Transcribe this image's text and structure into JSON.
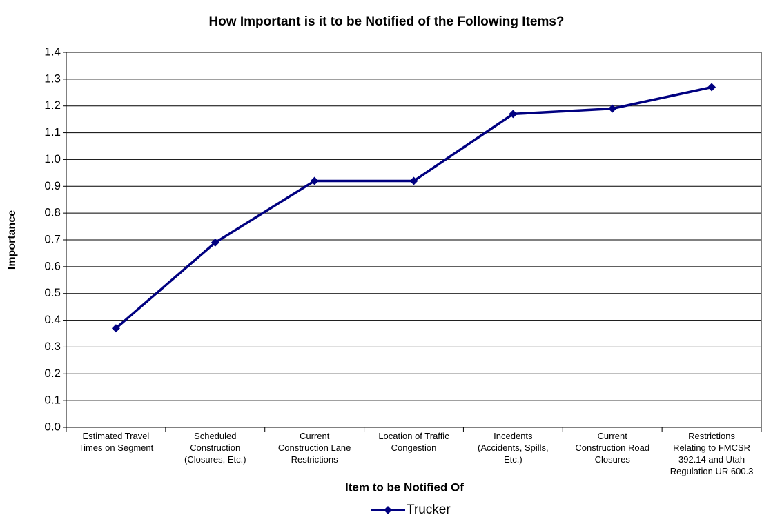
{
  "chart_data": {
    "type": "line",
    "title": "How Important is it to be Notified of the Following Items?",
    "x_label": "Item to be Notified Of",
    "y_label": "Importance",
    "categories": [
      "Estimated Travel Times on Segment",
      "Scheduled Construction (Closures, Etc.)",
      "Current Construction Lane Restrictions",
      "Location of Traffic Congestion",
      "Incedents (Accidents, Spills, Etc.)",
      "Current Construction Road Closures",
      "Restrictions Relating to FMCSR 392.14 and Utah Regulation UR 600.3"
    ],
    "series": [
      {
        "name": "Trucker",
        "color": "#000080",
        "values": [
          0.37,
          0.69,
          0.92,
          0.92,
          1.17,
          1.19,
          1.27
        ]
      }
    ],
    "ylim": [
      0,
      1.4
    ],
    "yticks": [
      {
        "value": 0,
        "label": "0.0"
      },
      0.1,
      0.2,
      0.3,
      0.4,
      0.5,
      0.6,
      0.7,
      0.8,
      0.9,
      {
        "value": 1,
        "label": "1.0"
      },
      1.1,
      1.2,
      1.3,
      1.4
    ],
    "grid": true,
    "legend": "bottom"
  }
}
